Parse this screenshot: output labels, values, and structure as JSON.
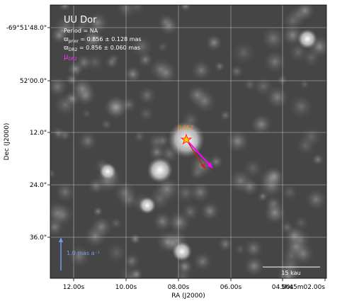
{
  "chart_data": {
    "type": "image",
    "title": "UU Dor",
    "info_lines": {
      "period": "Period = NA",
      "prior_symbol": "ϖ",
      "prior_sub": "prior",
      "prior_value": " = 0.856 ± 0.128 mas",
      "dr2_symbol": "ϖ",
      "dr2_sub": "DR2",
      "dr2_value": " = 0.856 ± 0.060 mas",
      "mu_symbol": "μ",
      "mu_sub": "DR2"
    },
    "xlabel": "RA (J2000)",
    "ylabel": "Dec (J2000)",
    "x_ticks": [
      "12.00s",
      "10.00s",
      "08.00s",
      "06.00s",
      "04.00s",
      "5h45m02.00s"
    ],
    "y_ticks": [
      "-69°51'48.0\"",
      "52'00.0\"",
      "12.0\"",
      "24.0\"",
      "36.0\""
    ],
    "grid": true,
    "target_label": "0.857",
    "scale_arrow_label": "1.0 mas a⁻¹",
    "scale_bar_label": "15 kau",
    "colors": {
      "title": "#ffffff",
      "mu_label": "#ff33ff",
      "proper_motion_arrow": "#ff00ff",
      "second_arrow": "#cc2222",
      "star_marker": "#ff3333",
      "target_label": "#ff8800",
      "scale_arrow": "#7799ee",
      "scale_text": "#7799ee",
      "grid": "#dddddd"
    }
  }
}
